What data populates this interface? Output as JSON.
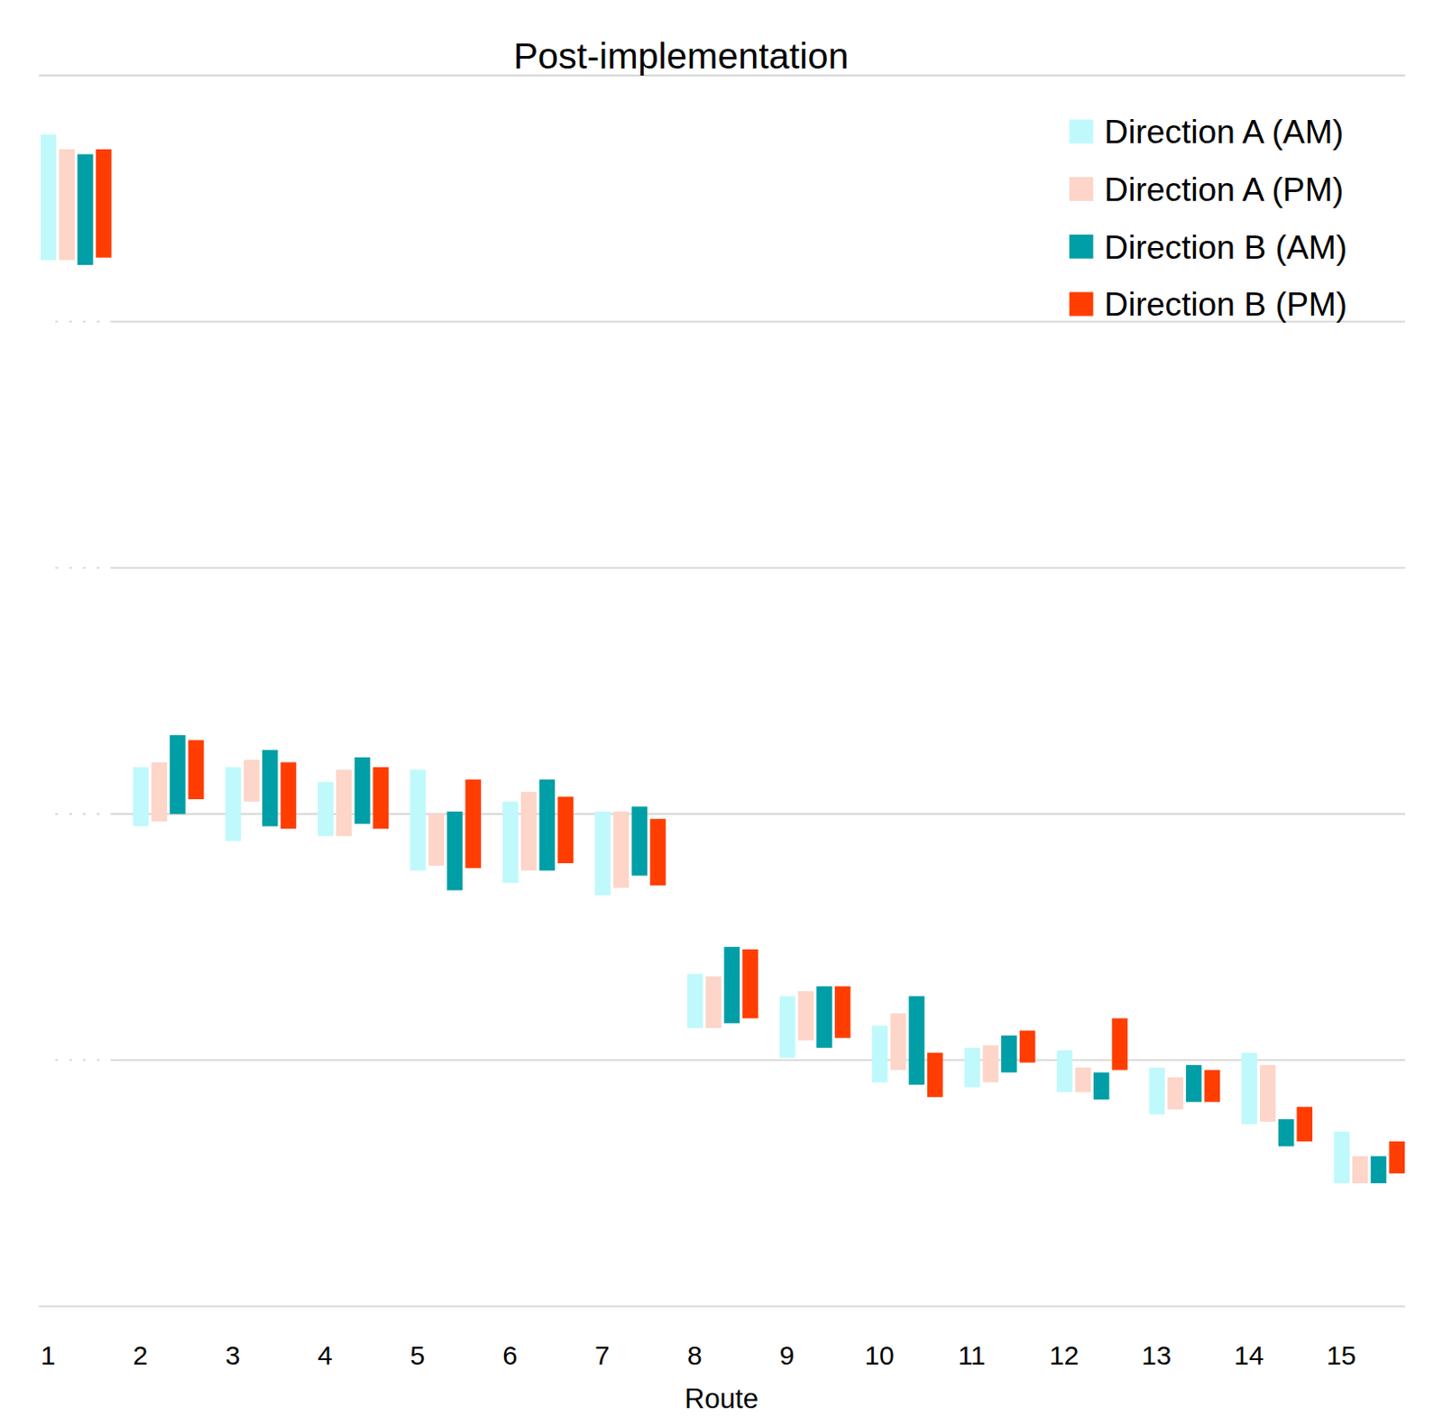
{
  "chart_data": {
    "type": "floating_bar",
    "title": "Post-implementation",
    "x_label": "Route",
    "categories": [
      "1",
      "2",
      "3",
      "4",
      "5",
      "6",
      "7",
      "8",
      "9",
      "10",
      "11",
      "12",
      "13",
      "14",
      "15"
    ],
    "ylim": [
      0,
      5
    ],
    "yticks": [
      0,
      1,
      2,
      3,
      4,
      5
    ],
    "grid": true,
    "tick_labels": "x",
    "legend": "top-right",
    "series": [
      {
        "name": "Direction A (AM)",
        "color": "#bff9fb",
        "values": [
          [
            4.25,
            4.76
          ],
          [
            1.95,
            2.19
          ],
          [
            1.89,
            2.19
          ],
          [
            1.91,
            2.13
          ],
          [
            1.77,
            2.18
          ],
          [
            1.72,
            2.05
          ],
          [
            1.67,
            2.01
          ],
          [
            1.13,
            1.35
          ],
          [
            1.01,
            1.26
          ],
          [
            0.91,
            1.14
          ],
          [
            0.89,
            1.05
          ],
          [
            0.87,
            1.04
          ],
          [
            0.78,
            0.97
          ],
          [
            0.74,
            1.03
          ],
          [
            0.5,
            0.71
          ]
        ]
      },
      {
        "name": "Direction A (PM)",
        "color": "#fdd5c9",
        "values": [
          [
            4.25,
            4.7
          ],
          [
            1.97,
            2.21
          ],
          [
            2.05,
            2.22
          ],
          [
            1.91,
            2.18
          ],
          [
            1.79,
            2.0
          ],
          [
            1.77,
            2.09
          ],
          [
            1.7,
            2.01
          ],
          [
            1.13,
            1.34
          ],
          [
            1.08,
            1.28
          ],
          [
            0.96,
            1.19
          ],
          [
            0.91,
            1.06
          ],
          [
            0.87,
            0.97
          ],
          [
            0.8,
            0.93
          ],
          [
            0.75,
            0.98
          ],
          [
            0.5,
            0.61
          ]
        ]
      },
      {
        "name": "Direction B (AM)",
        "color": "#009ea6",
        "values": [
          [
            4.23,
            4.68
          ],
          [
            2.0,
            2.32
          ],
          [
            1.95,
            2.26
          ],
          [
            1.96,
            2.23
          ],
          [
            1.69,
            2.01
          ],
          [
            1.77,
            2.14
          ],
          [
            1.75,
            2.03
          ],
          [
            1.15,
            1.46
          ],
          [
            1.05,
            1.3
          ],
          [
            0.9,
            1.26
          ],
          [
            0.95,
            1.1
          ],
          [
            0.84,
            0.95
          ],
          [
            0.83,
            0.98
          ],
          [
            0.65,
            0.76
          ],
          [
            0.5,
            0.61
          ]
        ]
      },
      {
        "name": "Direction B (PM)",
        "color": "#ff3d00",
        "values": [
          [
            4.26,
            4.7
          ],
          [
            2.06,
            2.3
          ],
          [
            1.94,
            2.21
          ],
          [
            1.94,
            2.19
          ],
          [
            1.78,
            2.14
          ],
          [
            1.8,
            2.07
          ],
          [
            1.71,
            1.98
          ],
          [
            1.17,
            1.45
          ],
          [
            1.09,
            1.3
          ],
          [
            0.85,
            1.03
          ],
          [
            0.99,
            1.12
          ],
          [
            0.96,
            1.17
          ],
          [
            0.83,
            0.96
          ],
          [
            0.67,
            0.81
          ],
          [
            0.54,
            0.67
          ]
        ]
      }
    ]
  }
}
